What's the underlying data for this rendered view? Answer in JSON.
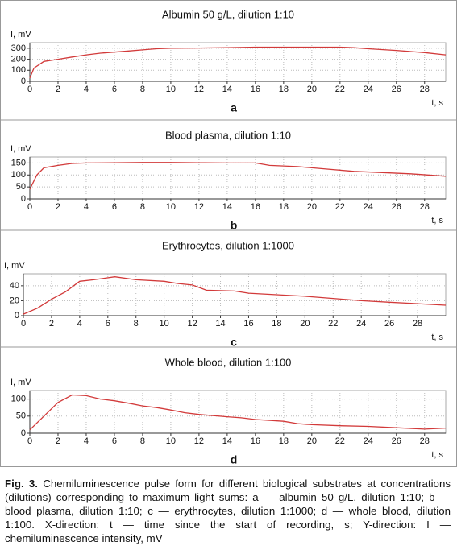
{
  "chart_data": [
    {
      "type": "line",
      "title": "Albumin 50 g/L, dilution 1:10",
      "y_label": "I, mV",
      "x_label": "t, s",
      "panel_label": "a",
      "x": [
        0,
        0.3,
        1,
        2,
        3,
        4,
        5,
        6,
        7,
        8,
        9,
        10,
        12,
        14,
        16,
        18,
        20,
        22,
        23,
        24,
        26,
        28,
        29.5
      ],
      "values": [
        30,
        120,
        180,
        200,
        220,
        240,
        255,
        265,
        275,
        285,
        295,
        300,
        302,
        305,
        310,
        310,
        310,
        310,
        305,
        295,
        280,
        260,
        240
      ],
      "color": "#d23a3a",
      "xlim": [
        0,
        29.5
      ],
      "ylim": [
        0,
        350
      ],
      "xticks": [
        0,
        2,
        4,
        6,
        8,
        10,
        12,
        14,
        16,
        18,
        20,
        22,
        24,
        26,
        28
      ],
      "yticks": [
        0,
        100,
        200,
        300
      ],
      "grid": true
    },
    {
      "type": "line",
      "title": "Blood plasma, dilution 1:10",
      "y_label": "I, mV",
      "x_label": "t, s",
      "panel_label": "b",
      "x": [
        0,
        0.5,
        1,
        2,
        3,
        4,
        6,
        8,
        10,
        12,
        14,
        16,
        17,
        19,
        21,
        23,
        25,
        27,
        29.5
      ],
      "values": [
        40,
        100,
        130,
        140,
        148,
        150,
        151,
        152,
        152,
        151,
        150,
        150,
        140,
        135,
        125,
        115,
        110,
        105,
        95
      ],
      "color": "#d23a3a",
      "xlim": [
        0,
        29.5
      ],
      "ylim": [
        0,
        175
      ],
      "xticks": [
        0,
        2,
        4,
        6,
        8,
        10,
        12,
        14,
        16,
        18,
        20,
        22,
        24,
        26,
        28
      ],
      "yticks": [
        0,
        50,
        100,
        150
      ],
      "grid": true
    },
    {
      "type": "line",
      "title": "Erythrocytes, dilution 1:1000",
      "y_label": "I, mV",
      "x_label": "t, s",
      "panel_label": "c",
      "x": [
        0,
        1,
        2,
        3,
        4,
        5,
        6.5,
        8,
        10,
        11,
        12,
        13,
        15,
        16,
        18,
        20,
        22,
        24,
        26,
        28,
        30
      ],
      "values": [
        2,
        10,
        22,
        32,
        46,
        48,
        52,
        48,
        46,
        43,
        41,
        34,
        33,
        30,
        28,
        26,
        23,
        20,
        18,
        16,
        14
      ],
      "color": "#d23a3a",
      "xlim": [
        0,
        30
      ],
      "ylim": [
        0,
        56
      ],
      "xticks": [
        0,
        2,
        4,
        6,
        8,
        10,
        12,
        14,
        16,
        18,
        20,
        22,
        24,
        26,
        28
      ],
      "yticks": [
        0,
        20,
        40
      ],
      "grid": true
    },
    {
      "type": "line",
      "title": "Whole blood, dilution 1:100",
      "y_label": "I, mV",
      "x_label": "t, s",
      "panel_label": "d",
      "x": [
        0,
        1,
        2,
        3,
        4,
        5,
        6,
        7,
        8,
        9,
        10,
        11,
        12,
        14,
        15,
        16,
        18,
        19,
        20,
        22,
        24,
        26,
        28,
        29.5
      ],
      "values": [
        10,
        50,
        90,
        112,
        110,
        100,
        95,
        88,
        80,
        75,
        68,
        60,
        55,
        48,
        45,
        40,
        35,
        28,
        25,
        22,
        20,
        16,
        12,
        15
      ],
      "color": "#d23a3a",
      "xlim": [
        0,
        29.5
      ],
      "ylim": [
        0,
        125
      ],
      "xticks": [
        0,
        2,
        4,
        6,
        8,
        10,
        12,
        14,
        16,
        18,
        20,
        22,
        24,
        26,
        28
      ],
      "yticks": [
        0,
        50,
        100
      ],
      "grid": true
    }
  ],
  "caption": {
    "label": "Fig. 3.",
    "text": "Chemiluminescence pulse form for different biological substrates at concentrations (dilutions) corresponding to maximum light sums: a — albumin 50 g/L, dilution 1:10; b — blood plasma, dilution 1:10; c — erythrocytes, dilution 1:1000; d — whole blood, dilution 1:100. X-direction: t — time since the start of recording, s; Y-direction: I — chemiluminescence intensity, mV"
  }
}
